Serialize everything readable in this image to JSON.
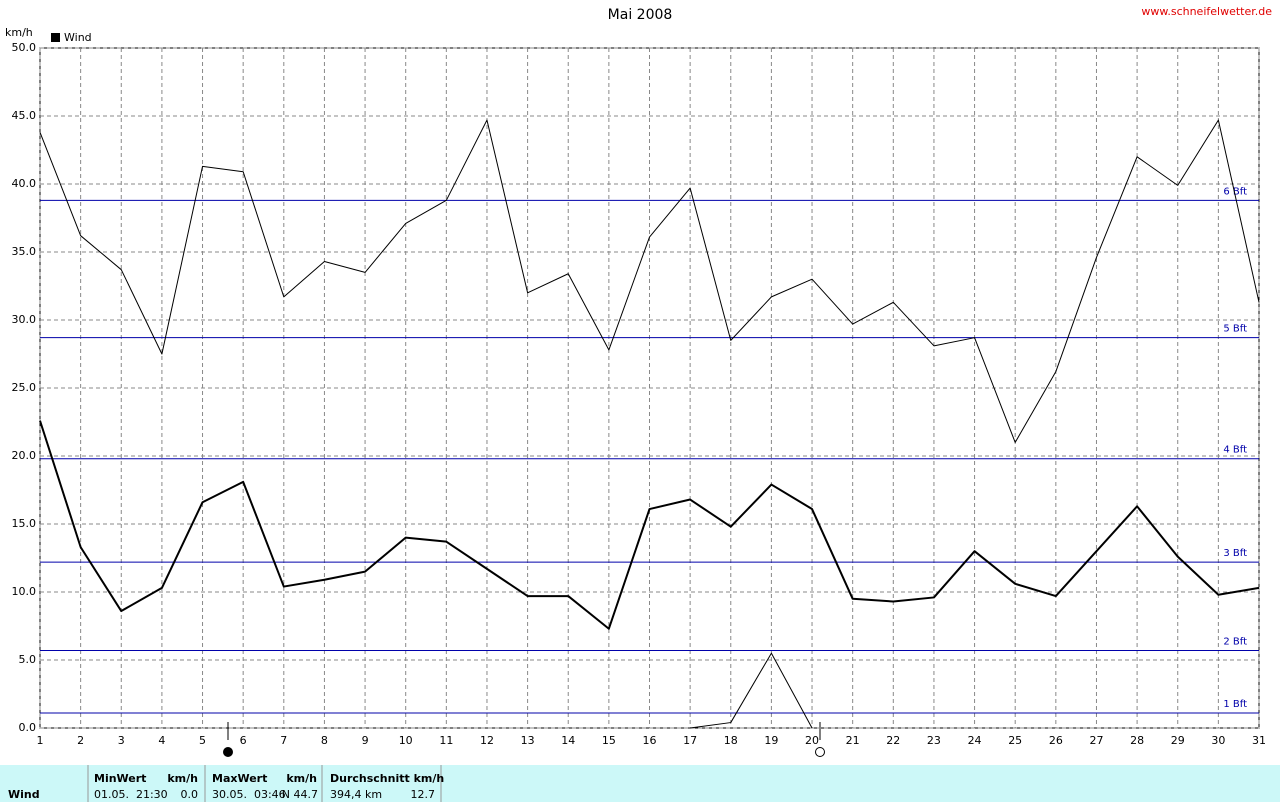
{
  "chart_data": {
    "type": "line",
    "title": "Mai 2008",
    "source": "www.schneifelwetter.de",
    "y_label": "km/h",
    "x": [
      1,
      2,
      3,
      4,
      5,
      6,
      7,
      8,
      9,
      10,
      11,
      12,
      13,
      14,
      15,
      16,
      17,
      18,
      19,
      20,
      21,
      22,
      23,
      24,
      25,
      26,
      27,
      28,
      29,
      30,
      31
    ],
    "xlim": [
      1,
      31
    ],
    "xticks": [
      1,
      2,
      3,
      4,
      5,
      6,
      7,
      8,
      9,
      10,
      11,
      12,
      13,
      14,
      15,
      16,
      17,
      18,
      19,
      20,
      21,
      22,
      23,
      24,
      25,
      26,
      27,
      28,
      29,
      30,
      31
    ],
    "ylim": [
      0,
      50
    ],
    "yticks": [
      {
        "value": 0,
        "label": "0.0"
      },
      {
        "value": 5,
        "label": "5.0"
      },
      {
        "value": 10,
        "label": "10.0"
      },
      {
        "value": 15,
        "label": "15.0"
      },
      {
        "value": 20,
        "label": "20.0"
      },
      {
        "value": 25,
        "label": "25.0"
      },
      {
        "value": 30,
        "label": "30.0"
      },
      {
        "value": 35,
        "label": "35.0"
      },
      {
        "value": 40,
        "label": "40.0"
      },
      {
        "value": 45,
        "label": "45.0"
      },
      {
        "value": 50,
        "label": "50.0"
      }
    ],
    "grid": true,
    "series": [
      {
        "color": "#000000",
        "width": 1,
        "values": [
          43.8,
          36.2,
          33.7,
          27.5,
          41.3,
          40.9,
          31.7,
          34.3,
          33.5,
          37.1,
          38.8,
          44.7,
          32.0,
          33.4,
          27.8,
          36.1,
          39.7,
          28.5,
          31.7,
          33.0,
          29.7,
          31.3,
          28.1,
          28.7,
          21.0,
          26.2,
          34.6,
          42.0,
          39.9,
          44.7,
          31.3
        ]
      },
      {
        "name": "Wind",
        "color": "#000000",
        "width": 2,
        "values": [
          22.6,
          13.3,
          8.6,
          10.3,
          16.6,
          18.1,
          10.4,
          10.9,
          11.5,
          14.0,
          13.7,
          11.7,
          9.7,
          9.7,
          7.3,
          16.1,
          16.8,
          14.8,
          17.9,
          16.1,
          9.5,
          9.3,
          9.6,
          13.0,
          10.6,
          9.7,
          13.0,
          16.3,
          12.6,
          9.8,
          10.3
        ]
      },
      {
        "color": "#000000",
        "width": 1,
        "values": [
          null,
          null,
          null,
          null,
          null,
          null,
          null,
          null,
          null,
          null,
          null,
          null,
          null,
          null,
          null,
          null,
          0,
          0.4,
          5.5,
          0,
          null,
          null,
          null,
          null,
          null,
          null,
          null,
          null,
          null,
          null,
          null
        ]
      }
    ],
    "reference_lines": {
      "color": "#0000aa",
      "lines": [
        {
          "value": 1.1,
          "label": "1 Bft"
        },
        {
          "value": 5.7,
          "label": "2 Bft"
        },
        {
          "value": 12.2,
          "label": "3 Bft"
        },
        {
          "value": 19.8,
          "label": "4 Bft"
        },
        {
          "value": 28.7,
          "label": "5 Bft"
        },
        {
          "value": 38.8,
          "label": "6 Bft"
        }
      ]
    }
  },
  "table": {
    "row_label": "Wind",
    "min": {
      "title": "MinWert",
      "unit": "km/h",
      "time": "01.05.  21:30",
      "value": "0.0"
    },
    "max": {
      "title": "MaxWert",
      "unit": "km/h",
      "time": "30.05.  03:46",
      "value": "N 44.7"
    },
    "avg": {
      "title": "Durchschnitt km/h",
      "distance": "394,4 km",
      "value": "12.7"
    }
  }
}
